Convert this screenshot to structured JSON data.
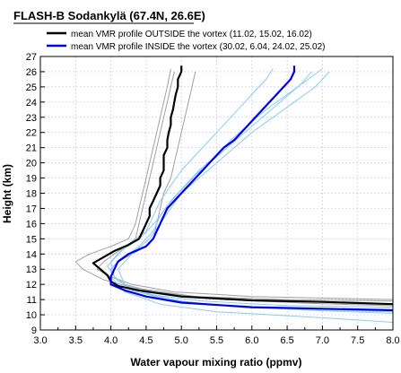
{
  "chart_data": {
    "type": "line",
    "title": "FLASH-B Sodankylä (67.4N, 26.6E)",
    "xlabel": "Water vapour mixing ratio (ppmv)",
    "ylabel": "Height (km)",
    "xlim": [
      3.0,
      8.0
    ],
    "ylim": [
      9,
      27
    ],
    "xticks": [
      "3.0",
      "3.5",
      "4.0",
      "4.5",
      "5.0",
      "5.5",
      "6.0",
      "6.5",
      "7.0",
      "7.5",
      "8.0"
    ],
    "yticks": [
      "9",
      "10",
      "11",
      "12",
      "13",
      "14",
      "15",
      "16",
      "17",
      "18",
      "19",
      "20",
      "21",
      "22",
      "23",
      "24",
      "25",
      "26",
      "27"
    ],
    "grid": true,
    "legend_position": "top-left",
    "colors": {
      "outside_mean": "#000000",
      "inside_mean": "#0000ee",
      "outside_individual": "#a0a0a0",
      "inside_individual": "#88ccf0",
      "grid": "#c8c8f0"
    },
    "series": [
      {
        "name": "mean VMR profile OUTSIDE the vortex (11.02, 15.02, 16.02)",
        "role": "mean-outside",
        "points": [
          [
            8.0,
            10.7
          ],
          [
            7.0,
            10.85
          ],
          [
            6.0,
            10.95
          ],
          [
            5.0,
            11.2
          ],
          [
            4.4,
            11.6
          ],
          [
            4.1,
            11.9
          ],
          [
            4.0,
            12.2
          ],
          [
            3.95,
            12.6
          ],
          [
            3.85,
            13.0
          ],
          [
            3.75,
            13.4
          ],
          [
            3.9,
            13.8
          ],
          [
            4.05,
            14.2
          ],
          [
            4.25,
            14.6
          ],
          [
            4.4,
            15.0
          ],
          [
            4.45,
            15.5
          ],
          [
            4.5,
            16.0
          ],
          [
            4.55,
            16.5
          ],
          [
            4.55,
            17.0
          ],
          [
            4.6,
            17.5
          ],
          [
            4.65,
            18.0
          ],
          [
            4.7,
            18.5
          ],
          [
            4.7,
            19.0
          ],
          [
            4.75,
            19.5
          ],
          [
            4.75,
            20.0
          ],
          [
            4.75,
            20.5
          ],
          [
            4.8,
            21.0
          ],
          [
            4.8,
            21.5
          ],
          [
            4.82,
            22.0
          ],
          [
            4.85,
            22.5
          ],
          [
            4.85,
            23.0
          ],
          [
            4.88,
            23.5
          ],
          [
            4.9,
            24.0
          ],
          [
            4.92,
            24.5
          ],
          [
            4.95,
            25.0
          ],
          [
            4.95,
            25.5
          ],
          [
            5.0,
            26.0
          ],
          [
            5.0,
            26.4
          ]
        ]
      },
      {
        "name": "mean VMR profile INSIDE the vortex (30.02, 6.04, 24.02, 25.02)",
        "role": "mean-inside",
        "points": [
          [
            8.0,
            10.3
          ],
          [
            7.0,
            10.4
          ],
          [
            6.0,
            10.5
          ],
          [
            5.0,
            10.8
          ],
          [
            4.5,
            11.2
          ],
          [
            4.2,
            11.6
          ],
          [
            4.0,
            12.0
          ],
          [
            4.0,
            12.5
          ],
          [
            4.05,
            13.0
          ],
          [
            4.1,
            13.5
          ],
          [
            4.25,
            14.0
          ],
          [
            4.5,
            14.5
          ],
          [
            4.6,
            15.0
          ],
          [
            4.65,
            15.5
          ],
          [
            4.7,
            16.0
          ],
          [
            4.75,
            16.5
          ],
          [
            4.8,
            17.0
          ],
          [
            4.9,
            17.5
          ],
          [
            5.0,
            18.0
          ],
          [
            5.1,
            18.5
          ],
          [
            5.2,
            19.0
          ],
          [
            5.3,
            19.5
          ],
          [
            5.4,
            20.0
          ],
          [
            5.5,
            20.5
          ],
          [
            5.6,
            21.0
          ],
          [
            5.75,
            21.5
          ],
          [
            5.85,
            22.0
          ],
          [
            5.95,
            22.5
          ],
          [
            6.05,
            23.0
          ],
          [
            6.15,
            23.5
          ],
          [
            6.25,
            24.0
          ],
          [
            6.35,
            24.5
          ],
          [
            6.45,
            25.0
          ],
          [
            6.55,
            25.5
          ],
          [
            6.6,
            26.0
          ],
          [
            6.6,
            26.4
          ]
        ]
      },
      {
        "role": "individual-outside",
        "points": [
          [
            8.0,
            10.9
          ],
          [
            6.5,
            11.0
          ],
          [
            5.2,
            11.2
          ],
          [
            4.3,
            11.8
          ],
          [
            3.9,
            12.3
          ],
          [
            3.6,
            13.0
          ],
          [
            3.5,
            13.5
          ],
          [
            3.7,
            14.0
          ],
          [
            4.0,
            14.5
          ],
          [
            4.25,
            15.0
          ],
          [
            4.3,
            15.5
          ],
          [
            4.35,
            16.0
          ],
          [
            4.4,
            17.0
          ],
          [
            4.45,
            18.0
          ],
          [
            4.5,
            19.0
          ],
          [
            4.55,
            20.0
          ],
          [
            4.6,
            21.0
          ],
          [
            4.65,
            22.0
          ],
          [
            4.7,
            23.0
          ],
          [
            4.75,
            24.0
          ],
          [
            4.8,
            25.0
          ],
          [
            4.85,
            26.2
          ]
        ]
      },
      {
        "role": "individual-outside",
        "points": [
          [
            8.0,
            10.6
          ],
          [
            6.8,
            10.75
          ],
          [
            5.6,
            11.0
          ],
          [
            4.6,
            11.5
          ],
          [
            4.2,
            12.0
          ],
          [
            4.05,
            12.5
          ],
          [
            4.0,
            13.0
          ],
          [
            4.1,
            13.5
          ],
          [
            4.3,
            14.0
          ],
          [
            4.5,
            14.5
          ],
          [
            4.6,
            15.0
          ],
          [
            4.65,
            16.0
          ],
          [
            4.7,
            17.0
          ],
          [
            4.75,
            18.0
          ],
          [
            4.85,
            19.0
          ],
          [
            4.9,
            20.0
          ],
          [
            4.95,
            21.0
          ],
          [
            5.0,
            22.0
          ],
          [
            5.05,
            23.0
          ],
          [
            5.1,
            24.0
          ],
          [
            5.15,
            25.0
          ],
          [
            5.2,
            26.0
          ]
        ]
      },
      {
        "role": "individual-outside",
        "points": [
          [
            8.0,
            11.0
          ],
          [
            6.0,
            11.2
          ],
          [
            4.9,
            11.5
          ],
          [
            4.3,
            12.0
          ],
          [
            4.0,
            12.5
          ],
          [
            3.8,
            13.0
          ],
          [
            3.9,
            13.5
          ],
          [
            4.05,
            14.0
          ],
          [
            4.2,
            14.5
          ],
          [
            4.35,
            15.0
          ],
          [
            4.4,
            16.0
          ],
          [
            4.45,
            17.0
          ],
          [
            4.5,
            18.0
          ],
          [
            4.55,
            19.0
          ],
          [
            4.6,
            20.0
          ],
          [
            4.65,
            21.0
          ],
          [
            4.7,
            22.0
          ],
          [
            4.75,
            23.0
          ],
          [
            4.8,
            24.0
          ],
          [
            4.85,
            25.0
          ],
          [
            4.9,
            26.0
          ]
        ]
      },
      {
        "role": "individual-inside",
        "points": [
          [
            8.0,
            9.5
          ],
          [
            7.0,
            9.8
          ],
          [
            5.5,
            10.2
          ],
          [
            4.7,
            10.7
          ],
          [
            4.2,
            11.5
          ],
          [
            4.0,
            12.5
          ],
          [
            4.1,
            13.5
          ],
          [
            4.4,
            14.5
          ],
          [
            4.6,
            15.5
          ],
          [
            4.7,
            16.5
          ],
          [
            4.85,
            17.5
          ],
          [
            5.05,
            18.5
          ],
          [
            5.25,
            19.5
          ],
          [
            5.5,
            20.5
          ],
          [
            5.7,
            21.5
          ],
          [
            5.95,
            22.5
          ],
          [
            6.2,
            23.5
          ],
          [
            6.5,
            24.5
          ],
          [
            6.8,
            25.5
          ],
          [
            7.0,
            26.2
          ]
        ]
      },
      {
        "role": "individual-inside",
        "points": [
          [
            8.0,
            10.1
          ],
          [
            6.8,
            10.3
          ],
          [
            5.6,
            10.6
          ],
          [
            4.8,
            11.0
          ],
          [
            4.3,
            11.6
          ],
          [
            4.05,
            12.5
          ],
          [
            4.0,
            13.5
          ],
          [
            4.2,
            14.5
          ],
          [
            4.5,
            15.5
          ],
          [
            4.6,
            16.5
          ],
          [
            4.7,
            17.5
          ],
          [
            4.85,
            18.5
          ],
          [
            5.0,
            19.5
          ],
          [
            5.2,
            20.5
          ],
          [
            5.4,
            21.5
          ],
          [
            5.6,
            22.5
          ],
          [
            5.8,
            23.5
          ],
          [
            6.0,
            24.5
          ],
          [
            6.2,
            25.5
          ],
          [
            6.3,
            26.2
          ]
        ]
      },
      {
        "role": "individual-inside",
        "points": [
          [
            8.0,
            10.5
          ],
          [
            6.5,
            10.6
          ],
          [
            5.3,
            10.9
          ],
          [
            4.6,
            11.3
          ],
          [
            4.2,
            12.0
          ],
          [
            4.1,
            13.0
          ],
          [
            4.3,
            14.0
          ],
          [
            4.55,
            15.0
          ],
          [
            4.7,
            16.0
          ],
          [
            4.85,
            17.0
          ],
          [
            5.0,
            18.0
          ],
          [
            5.25,
            19.0
          ],
          [
            5.5,
            20.0
          ],
          [
            5.75,
            21.0
          ],
          [
            6.0,
            22.0
          ],
          [
            6.3,
            23.0
          ],
          [
            6.6,
            24.0
          ],
          [
            6.9,
            25.0
          ],
          [
            7.1,
            26.0
          ]
        ]
      },
      {
        "role": "individual-inside",
        "points": [
          [
            8.0,
            10.2
          ],
          [
            7.2,
            10.3
          ],
          [
            6.0,
            10.45
          ],
          [
            5.1,
            10.8
          ],
          [
            4.5,
            11.4
          ],
          [
            4.1,
            12.2
          ],
          [
            3.95,
            13.2
          ],
          [
            4.15,
            14.2
          ],
          [
            4.45,
            15.2
          ],
          [
            4.65,
            16.2
          ],
          [
            4.8,
            17.2
          ],
          [
            5.0,
            18.2
          ],
          [
            5.2,
            19.2
          ],
          [
            5.45,
            20.2
          ],
          [
            5.7,
            21.2
          ],
          [
            5.95,
            22.2
          ],
          [
            6.2,
            23.2
          ],
          [
            6.45,
            24.2
          ],
          [
            6.7,
            25.2
          ],
          [
            6.85,
            26.0
          ]
        ]
      }
    ]
  }
}
